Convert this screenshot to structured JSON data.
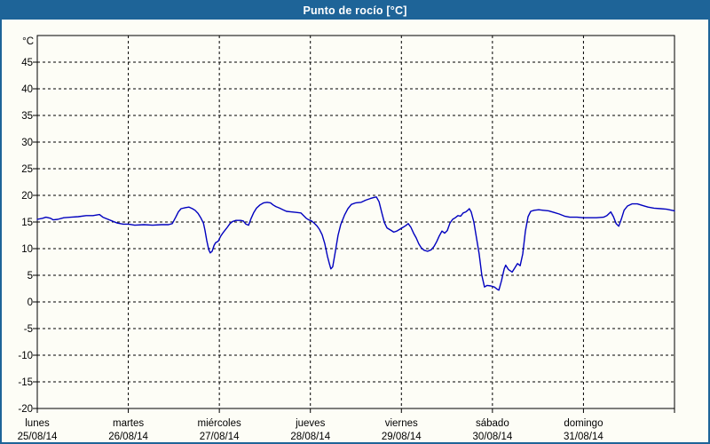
{
  "window": {
    "title": "Punto de rocío [°C]"
  },
  "colors": {
    "titlebar_bg": "#1e6498",
    "titlebar_text": "#ffffff",
    "window_border": "#1e6498",
    "content_bg": "#fdfdf6",
    "line": "#0000bf",
    "grid": "#000000",
    "axis": "#000000",
    "text": "#000000"
  },
  "chart_data": {
    "type": "line",
    "title": "Punto de rocío [°C]",
    "ylabel": "°C",
    "xlabel": "",
    "ylim": [
      -20,
      50
    ],
    "yticks": [
      45,
      40,
      35,
      30,
      25,
      20,
      15,
      10,
      5,
      0,
      -5,
      -10,
      -15,
      -20
    ],
    "xlim_hours": [
      0,
      168
    ],
    "grid": true,
    "legend_position": "none",
    "days": [
      {
        "name": "lunes",
        "date": "25/08/14"
      },
      {
        "name": "martes",
        "date": "26/08/14"
      },
      {
        "name": "miércoles",
        "date": "27/08/14"
      },
      {
        "name": "jueves",
        "date": "28/08/14"
      },
      {
        "name": "viernes",
        "date": "29/08/14"
      },
      {
        "name": "sábado",
        "date": "30/08/14"
      },
      {
        "name": "domingo",
        "date": "31/08/14"
      }
    ],
    "series": [
      {
        "name": "Punto de rocío",
        "unit": "°C",
        "color": "#0000bf",
        "points_hours_value": [
          [
            0,
            15.5
          ],
          [
            1.4,
            15.7
          ],
          [
            2.3,
            15.9
          ],
          [
            3.5,
            15.7
          ],
          [
            4.2,
            15.4
          ],
          [
            5.4,
            15.5
          ],
          [
            7,
            15.8
          ],
          [
            8.9,
            15.9
          ],
          [
            10.8,
            16
          ],
          [
            12.9,
            16.2
          ],
          [
            14.7,
            16.2
          ],
          [
            16.4,
            16.4
          ],
          [
            17.3,
            15.9
          ],
          [
            18.3,
            15.6
          ],
          [
            19.7,
            15.2
          ],
          [
            21.1,
            14.8
          ],
          [
            22.7,
            14.6
          ],
          [
            24.1,
            14.6
          ],
          [
            25.7,
            14.4
          ],
          [
            28.1,
            14.5
          ],
          [
            30.4,
            14.4
          ],
          [
            32.8,
            14.5
          ],
          [
            34.6,
            14.5
          ],
          [
            35.6,
            14.7
          ],
          [
            36.5,
            15.9
          ],
          [
            37.2,
            16.9
          ],
          [
            37.9,
            17.5
          ],
          [
            39.1,
            17.7
          ],
          [
            40,
            17.8
          ],
          [
            40.9,
            17.5
          ],
          [
            41.6,
            17.2
          ],
          [
            42.4,
            16.6
          ],
          [
            43.1,
            15.8
          ],
          [
            43.8,
            14.8
          ],
          [
            44.2,
            13.5
          ],
          [
            44.7,
            11.5
          ],
          [
            45.2,
            9.8
          ],
          [
            45.6,
            9.2
          ],
          [
            46.1,
            9.5
          ],
          [
            46.6,
            10.6
          ],
          [
            47,
            11.1
          ],
          [
            47.7,
            11.4
          ],
          [
            48.4,
            12.4
          ],
          [
            49.1,
            13.1
          ],
          [
            50.1,
            14
          ],
          [
            50.8,
            14.7
          ],
          [
            51.5,
            15.1
          ],
          [
            52.4,
            15.3
          ],
          [
            53.6,
            15.3
          ],
          [
            54.3,
            15.2
          ],
          [
            55,
            14.6
          ],
          [
            55.7,
            14.4
          ],
          [
            56.4,
            15.7
          ],
          [
            57.1,
            16.8
          ],
          [
            57.8,
            17.6
          ],
          [
            58.7,
            18.2
          ],
          [
            59.7,
            18.6
          ],
          [
            60.6,
            18.7
          ],
          [
            61.5,
            18.6
          ],
          [
            62.2,
            18.2
          ],
          [
            62.9,
            17.9
          ],
          [
            63.9,
            17.6
          ],
          [
            64.8,
            17.3
          ],
          [
            65.7,
            17
          ],
          [
            66.9,
            16.9
          ],
          [
            68.3,
            16.8
          ],
          [
            69.5,
            16.7
          ],
          [
            70.2,
            16.2
          ],
          [
            70.9,
            15.7
          ],
          [
            71.6,
            15.4
          ],
          [
            72.3,
            15.2
          ],
          [
            73,
            14.8
          ],
          [
            73.7,
            14.3
          ],
          [
            74.4,
            13.6
          ],
          [
            75.1,
            12.6
          ],
          [
            75.8,
            10.9
          ],
          [
            76.5,
            8.6
          ],
          [
            77,
            7.2
          ],
          [
            77.4,
            6.2
          ],
          [
            77.9,
            6.6
          ],
          [
            78.6,
            9.5
          ],
          [
            79.3,
            12.5
          ],
          [
            80,
            14.5
          ],
          [
            81,
            16.3
          ],
          [
            81.9,
            17.5
          ],
          [
            82.8,
            18.3
          ],
          [
            84,
            18.6
          ],
          [
            85.4,
            18.7
          ],
          [
            86.6,
            19.1
          ],
          [
            87.8,
            19.4
          ],
          [
            88.7,
            19.6
          ],
          [
            89.4,
            19.7
          ],
          [
            90.1,
            18.8
          ],
          [
            90.8,
            16.8
          ],
          [
            91.5,
            14.9
          ],
          [
            92.2,
            13.9
          ],
          [
            93.1,
            13.5
          ],
          [
            94,
            13.1
          ],
          [
            94.8,
            13.3
          ],
          [
            95.5,
            13.6
          ],
          [
            96.2,
            13.9
          ],
          [
            97.1,
            14.3
          ],
          [
            97.8,
            14.7
          ],
          [
            98.5,
            14
          ],
          [
            99.2,
            12.9
          ],
          [
            99.9,
            12
          ],
          [
            100.6,
            10.9
          ],
          [
            101.3,
            10.1
          ],
          [
            102,
            9.7
          ],
          [
            102.9,
            9.5
          ],
          [
            103.9,
            9.8
          ],
          [
            104.6,
            10.4
          ],
          [
            105.3,
            11.3
          ],
          [
            106,
            12.4
          ],
          [
            106.7,
            13.3
          ],
          [
            107.4,
            12.9
          ],
          [
            108.1,
            13.4
          ],
          [
            108.8,
            14.8
          ],
          [
            109.5,
            15.5
          ],
          [
            110.2,
            15.8
          ],
          [
            110.9,
            16.2
          ],
          [
            111.6,
            16.1
          ],
          [
            112.3,
            16.7
          ],
          [
            113,
            16.9
          ],
          [
            113.5,
            17.2
          ],
          [
            113.9,
            17.5
          ],
          [
            114.4,
            16.9
          ],
          [
            115.1,
            15
          ],
          [
            115.8,
            12
          ],
          [
            116.5,
            9
          ],
          [
            117.2,
            5
          ],
          [
            117.9,
            2.8
          ],
          [
            118.6,
            3.1
          ],
          [
            119.6,
            3
          ],
          [
            120.5,
            2.8
          ],
          [
            121.2,
            2.4
          ],
          [
            121.7,
            2.2
          ],
          [
            122.4,
            4
          ],
          [
            123.1,
            6.2
          ],
          [
            123.5,
            6.9
          ],
          [
            124.2,
            6.1
          ],
          [
            125.2,
            5.6
          ],
          [
            125.9,
            6.4
          ],
          [
            126.6,
            7.2
          ],
          [
            127.3,
            6.8
          ],
          [
            128,
            9
          ],
          [
            128.7,
            13.3
          ],
          [
            129.4,
            16
          ],
          [
            130.1,
            17
          ],
          [
            131,
            17.2
          ],
          [
            132.2,
            17.3
          ],
          [
            133.4,
            17.2
          ],
          [
            134.8,
            17.1
          ],
          [
            136.2,
            16.8
          ],
          [
            137.6,
            16.5
          ],
          [
            139,
            16.1
          ],
          [
            140.4,
            15.9
          ],
          [
            142.3,
            15.9
          ],
          [
            143.9,
            15.8
          ],
          [
            145.6,
            15.8
          ],
          [
            147.4,
            15.8
          ],
          [
            149.3,
            15.9
          ],
          [
            150.2,
            16.2
          ],
          [
            151.2,
            16.9
          ],
          [
            151.9,
            16
          ],
          [
            152.6,
            14.7
          ],
          [
            153.3,
            14.2
          ],
          [
            154,
            15.6
          ],
          [
            154.7,
            17.2
          ],
          [
            155.6,
            18
          ],
          [
            156.8,
            18.4
          ],
          [
            158.2,
            18.4
          ],
          [
            159.6,
            18.1
          ],
          [
            161,
            17.8
          ],
          [
            162.6,
            17.6
          ],
          [
            164.3,
            17.5
          ],
          [
            165.9,
            17.4
          ],
          [
            168,
            17.1
          ]
        ]
      }
    ]
  }
}
